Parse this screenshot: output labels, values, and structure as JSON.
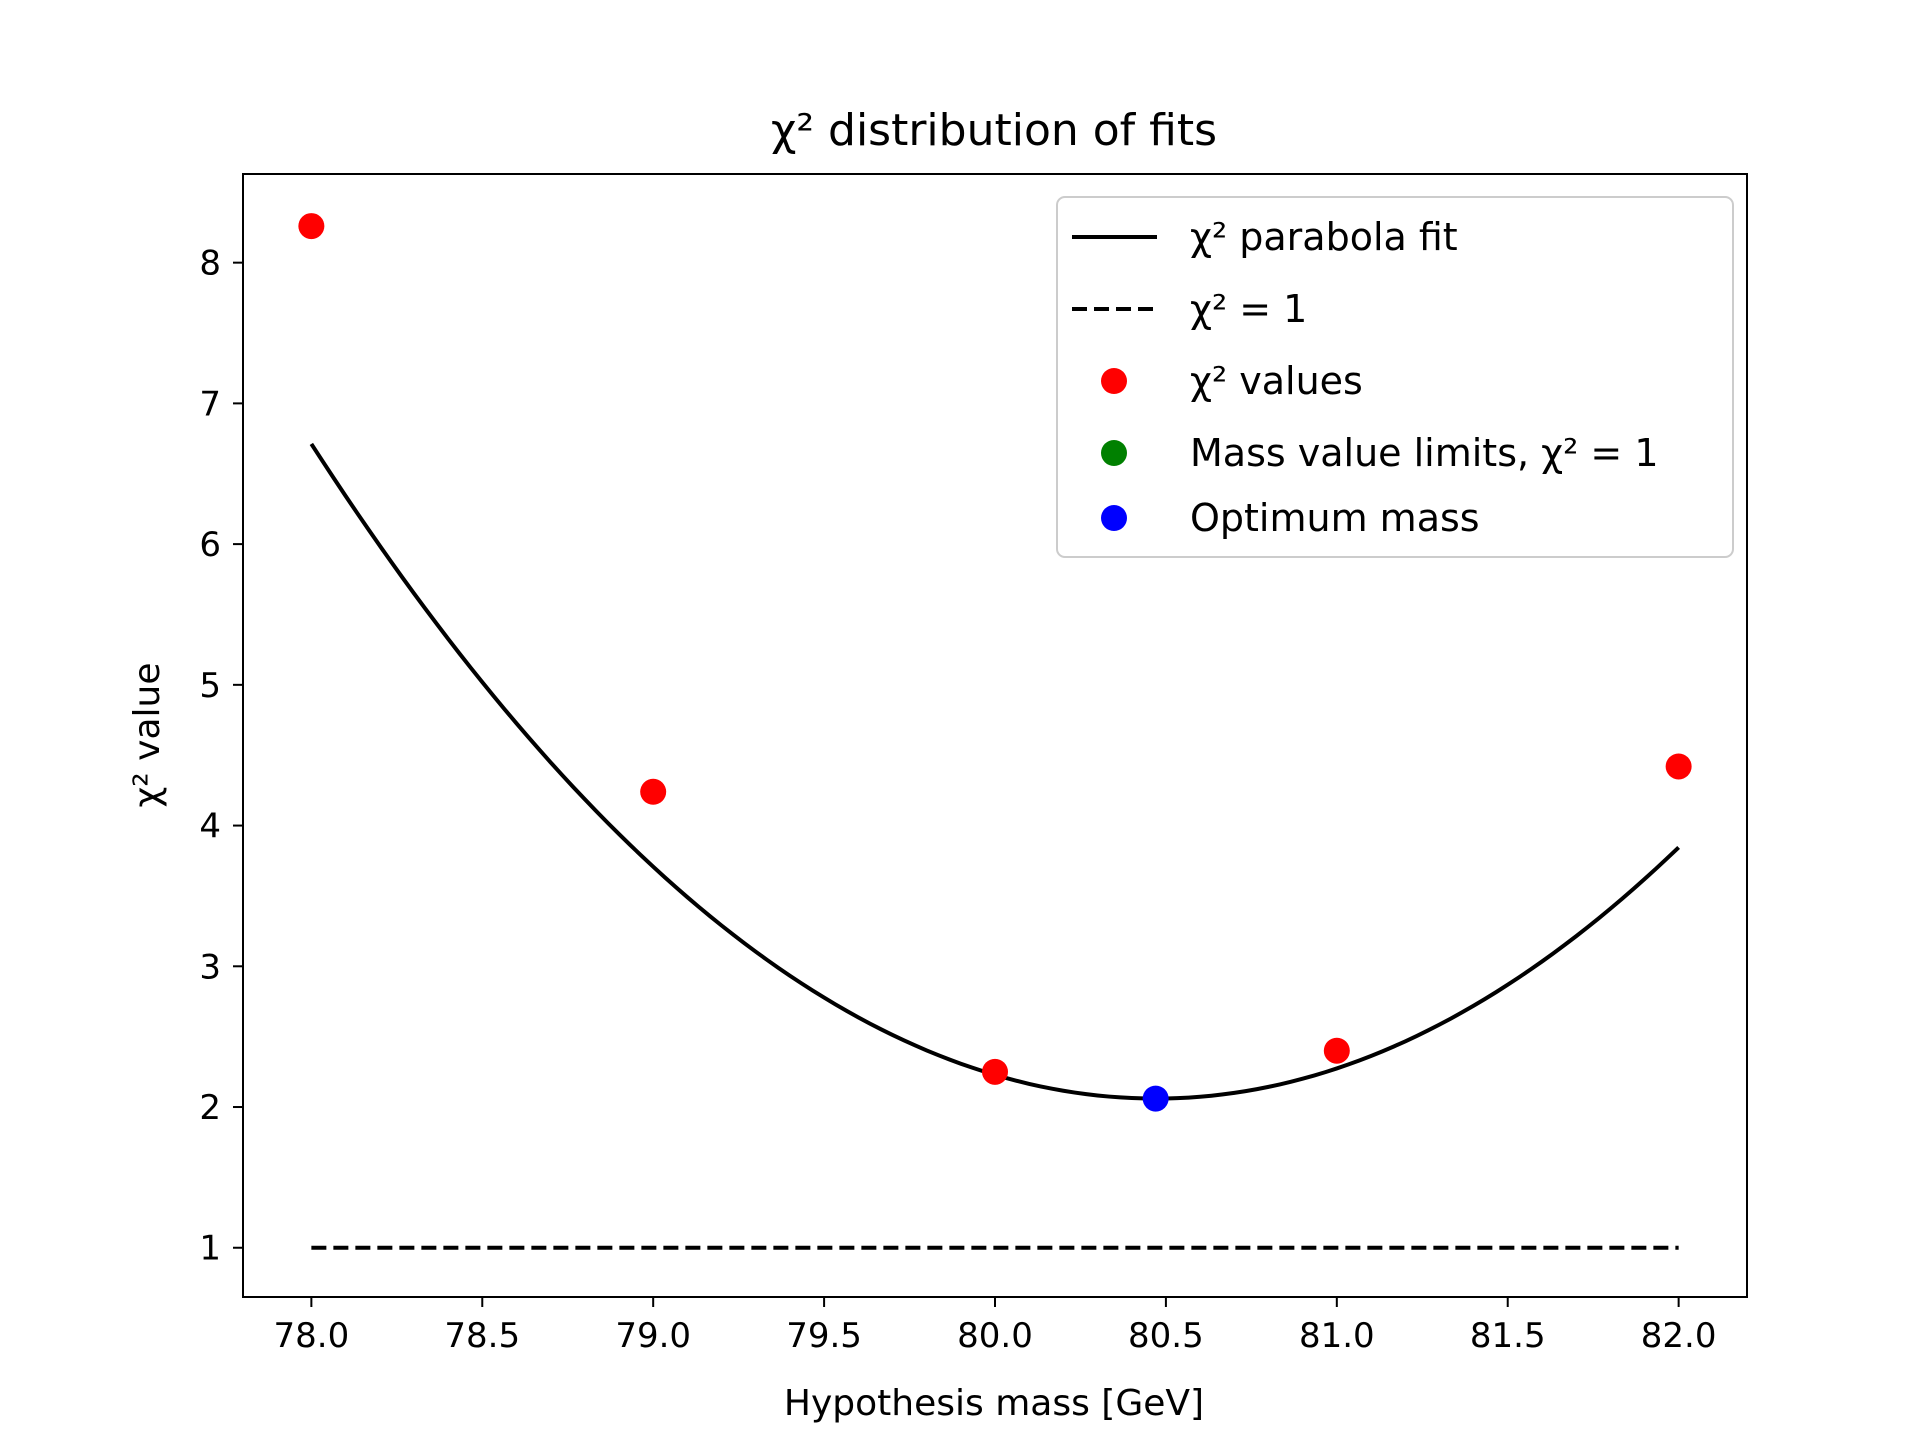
{
  "chart_data": {
    "type": "scatter",
    "title": "χ² distribution of fits",
    "xlabel": "Hypothesis mass [GeV]",
    "ylabel": "χ² value",
    "xlim": [
      77.8,
      82.2
    ],
    "ylim": [
      0.65,
      8.63
    ],
    "xticks": [
      78.0,
      78.5,
      79.0,
      79.5,
      80.0,
      80.5,
      81.0,
      81.5,
      82.0
    ],
    "xtick_labels": [
      "78.0",
      "78.5",
      "79.0",
      "79.5",
      "80.0",
      "80.5",
      "81.0",
      "81.5",
      "82.0"
    ],
    "yticks": [
      1,
      2,
      3,
      4,
      5,
      6,
      7,
      8
    ],
    "ytick_labels": [
      "1",
      "2",
      "3",
      "4",
      "5",
      "6",
      "7",
      "8"
    ],
    "grid": false,
    "legend_position": "top-right",
    "series": [
      {
        "name": "χ² parabola fit",
        "kind": "line",
        "style": "solid",
        "color": "#000000",
        "fit": {
          "a": 0.7625,
          "x0": 80.47,
          "c": 2.06
        },
        "x_range": [
          78.0,
          82.0
        ]
      },
      {
        "name": "χ² = 1",
        "kind": "line",
        "style": "dashed",
        "color": "#000000",
        "x": [
          78.0,
          82.0
        ],
        "y": [
          1,
          1
        ]
      },
      {
        "name": "χ² values",
        "kind": "scatter",
        "color": "#ff0000",
        "x": [
          78.0,
          79.0,
          80.0,
          81.0,
          82.0
        ],
        "y": [
          8.26,
          4.24,
          2.25,
          2.4,
          4.42
        ]
      },
      {
        "name": "Mass value limits, χ² = 1",
        "kind": "scatter",
        "color": "#008000",
        "x": [],
        "y": []
      },
      {
        "name": "Optimum mass",
        "kind": "scatter",
        "color": "#0000ff",
        "x": [
          80.47
        ],
        "y": [
          2.06
        ]
      }
    ]
  }
}
